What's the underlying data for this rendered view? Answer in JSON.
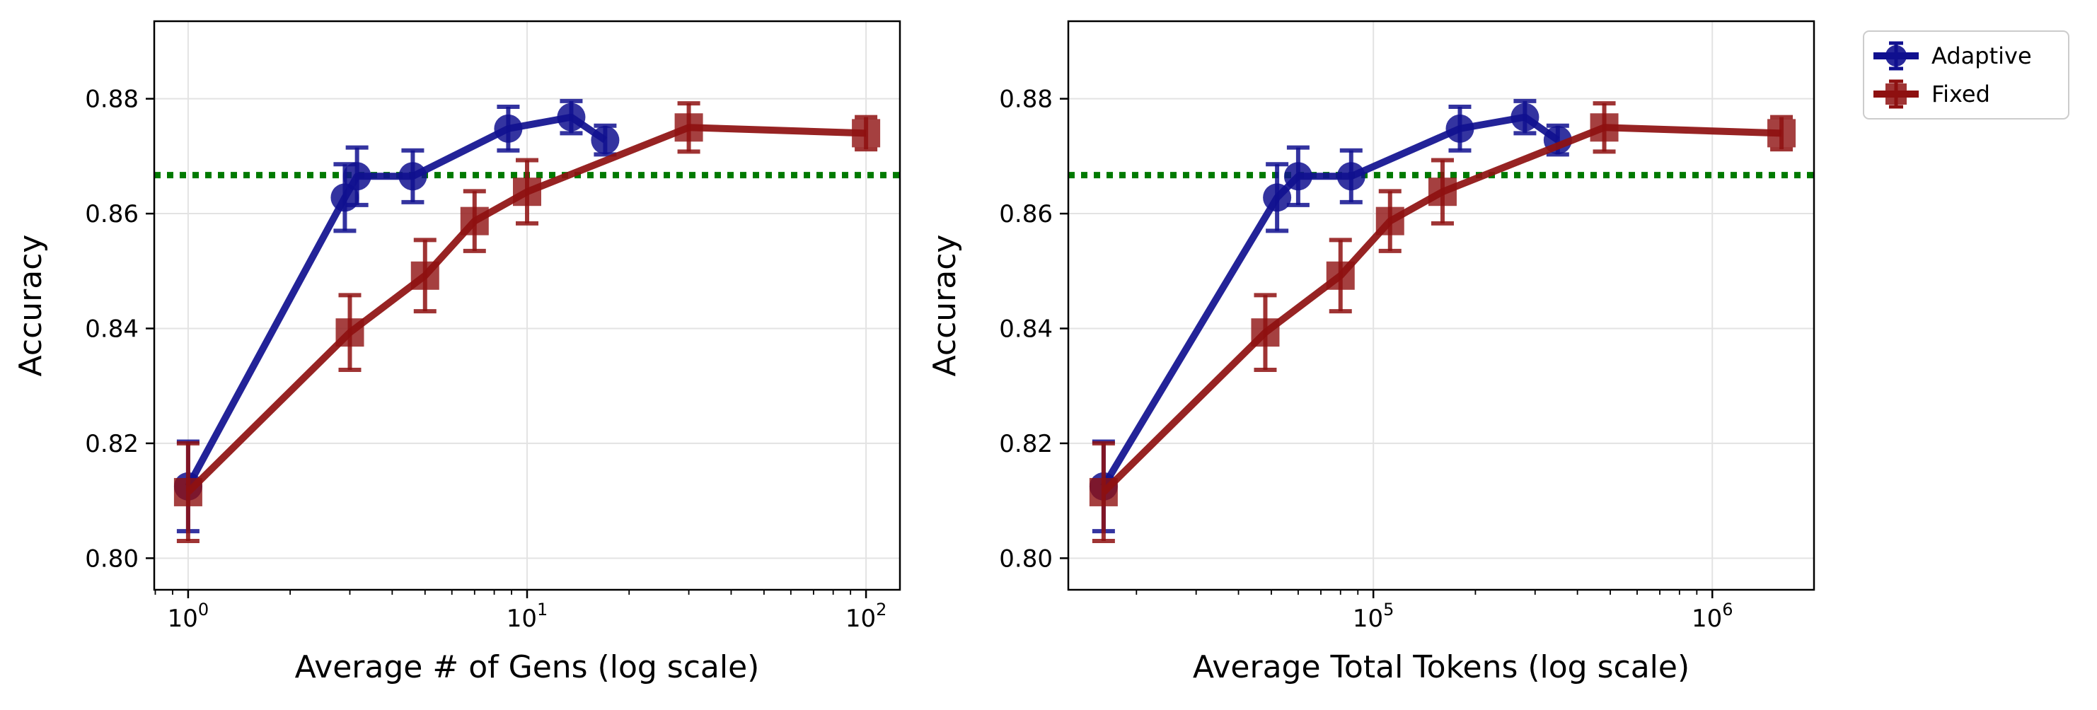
{
  "chart_data": [
    {
      "type": "line",
      "xscale": "log",
      "xlabel": "Average # of Gens (log scale)",
      "ylabel": "Accuracy",
      "xlim_log10": [
        -0.1,
        2.1
      ],
      "ylim": [
        0.7945,
        0.8935
      ],
      "xticks": [
        {
          "value": 1,
          "base": "10",
          "exp": "0"
        },
        {
          "value": 10,
          "base": "10",
          "exp": "1"
        },
        {
          "value": 100,
          "base": "10",
          "exp": "2"
        }
      ],
      "yticks": [
        {
          "value": 0.8,
          "label": "0.80"
        },
        {
          "value": 0.82,
          "label": "0.82"
        },
        {
          "value": 0.84,
          "label": "0.84"
        },
        {
          "value": 0.86,
          "label": "0.86"
        },
        {
          "value": 0.88,
          "label": "0.88"
        }
      ],
      "baseline": 0.8667,
      "grid": true,
      "series": [
        {
          "name": "Adaptive",
          "marker": "circle",
          "x": [
            1.0,
            2.9,
            3.15,
            4.6,
            8.8,
            13.5,
            17.0
          ],
          "y": [
            0.8125,
            0.8628,
            0.8665,
            0.8665,
            0.8748,
            0.8768,
            0.8728
          ],
          "err": [
            0.0078,
            0.0058,
            0.005,
            0.0045,
            0.0038,
            0.0028,
            0.0025
          ]
        },
        {
          "name": "Fixed",
          "marker": "square",
          "x": [
            1.0,
            3.0,
            5.0,
            7.0,
            10.0,
            30.0,
            100.0
          ],
          "y": [
            0.8115,
            0.8393,
            0.8492,
            0.8587,
            0.8638,
            0.875,
            0.874
          ],
          "err": [
            0.0085,
            0.0065,
            0.0062,
            0.0052,
            0.0055,
            0.0042,
            0.0028
          ]
        }
      ]
    },
    {
      "type": "line",
      "xscale": "log",
      "xlabel": "Average Total Tokens (log scale)",
      "ylabel": "Accuracy",
      "xlim_log10": [
        4.1,
        6.3
      ],
      "ylim": [
        0.7945,
        0.8935
      ],
      "xticks": [
        {
          "value": 100000,
          "base": "10",
          "exp": "5"
        },
        {
          "value": 1000000,
          "base": "10",
          "exp": "6"
        }
      ],
      "yticks": [
        {
          "value": 0.8,
          "label": "0.80"
        },
        {
          "value": 0.82,
          "label": "0.82"
        },
        {
          "value": 0.84,
          "label": "0.84"
        },
        {
          "value": 0.86,
          "label": "0.86"
        },
        {
          "value": 0.88,
          "label": "0.88"
        }
      ],
      "baseline": 0.8667,
      "grid": true,
      "series": [
        {
          "name": "Adaptive",
          "marker": "circle",
          "x": [
            16000,
            52000,
            60000,
            86000,
            180000,
            280000,
            350000
          ],
          "y": [
            0.8125,
            0.8628,
            0.8665,
            0.8665,
            0.8748,
            0.8768,
            0.8728
          ],
          "err": [
            0.0078,
            0.0058,
            0.005,
            0.0045,
            0.0038,
            0.0028,
            0.0025
          ]
        },
        {
          "name": "Fixed",
          "marker": "square",
          "x": [
            16000,
            48000,
            80000,
            112000,
            160000,
            480000,
            1600000
          ],
          "y": [
            0.8115,
            0.8393,
            0.8492,
            0.8587,
            0.8638,
            0.875,
            0.874
          ],
          "err": [
            0.0085,
            0.0065,
            0.0062,
            0.0052,
            0.0055,
            0.0042,
            0.0028
          ]
        }
      ]
    }
  ],
  "legend": {
    "position": "outside-top-right",
    "entries": [
      {
        "name": "Adaptive",
        "color": "#10108f",
        "marker": "circle"
      },
      {
        "name": "Fixed",
        "color": "#8e1010",
        "marker": "square"
      }
    ]
  },
  "colors": {
    "adaptive": "#10108f",
    "fixed": "#8e1010",
    "baseline": "#007a00",
    "grid": "#e3e3e3"
  }
}
